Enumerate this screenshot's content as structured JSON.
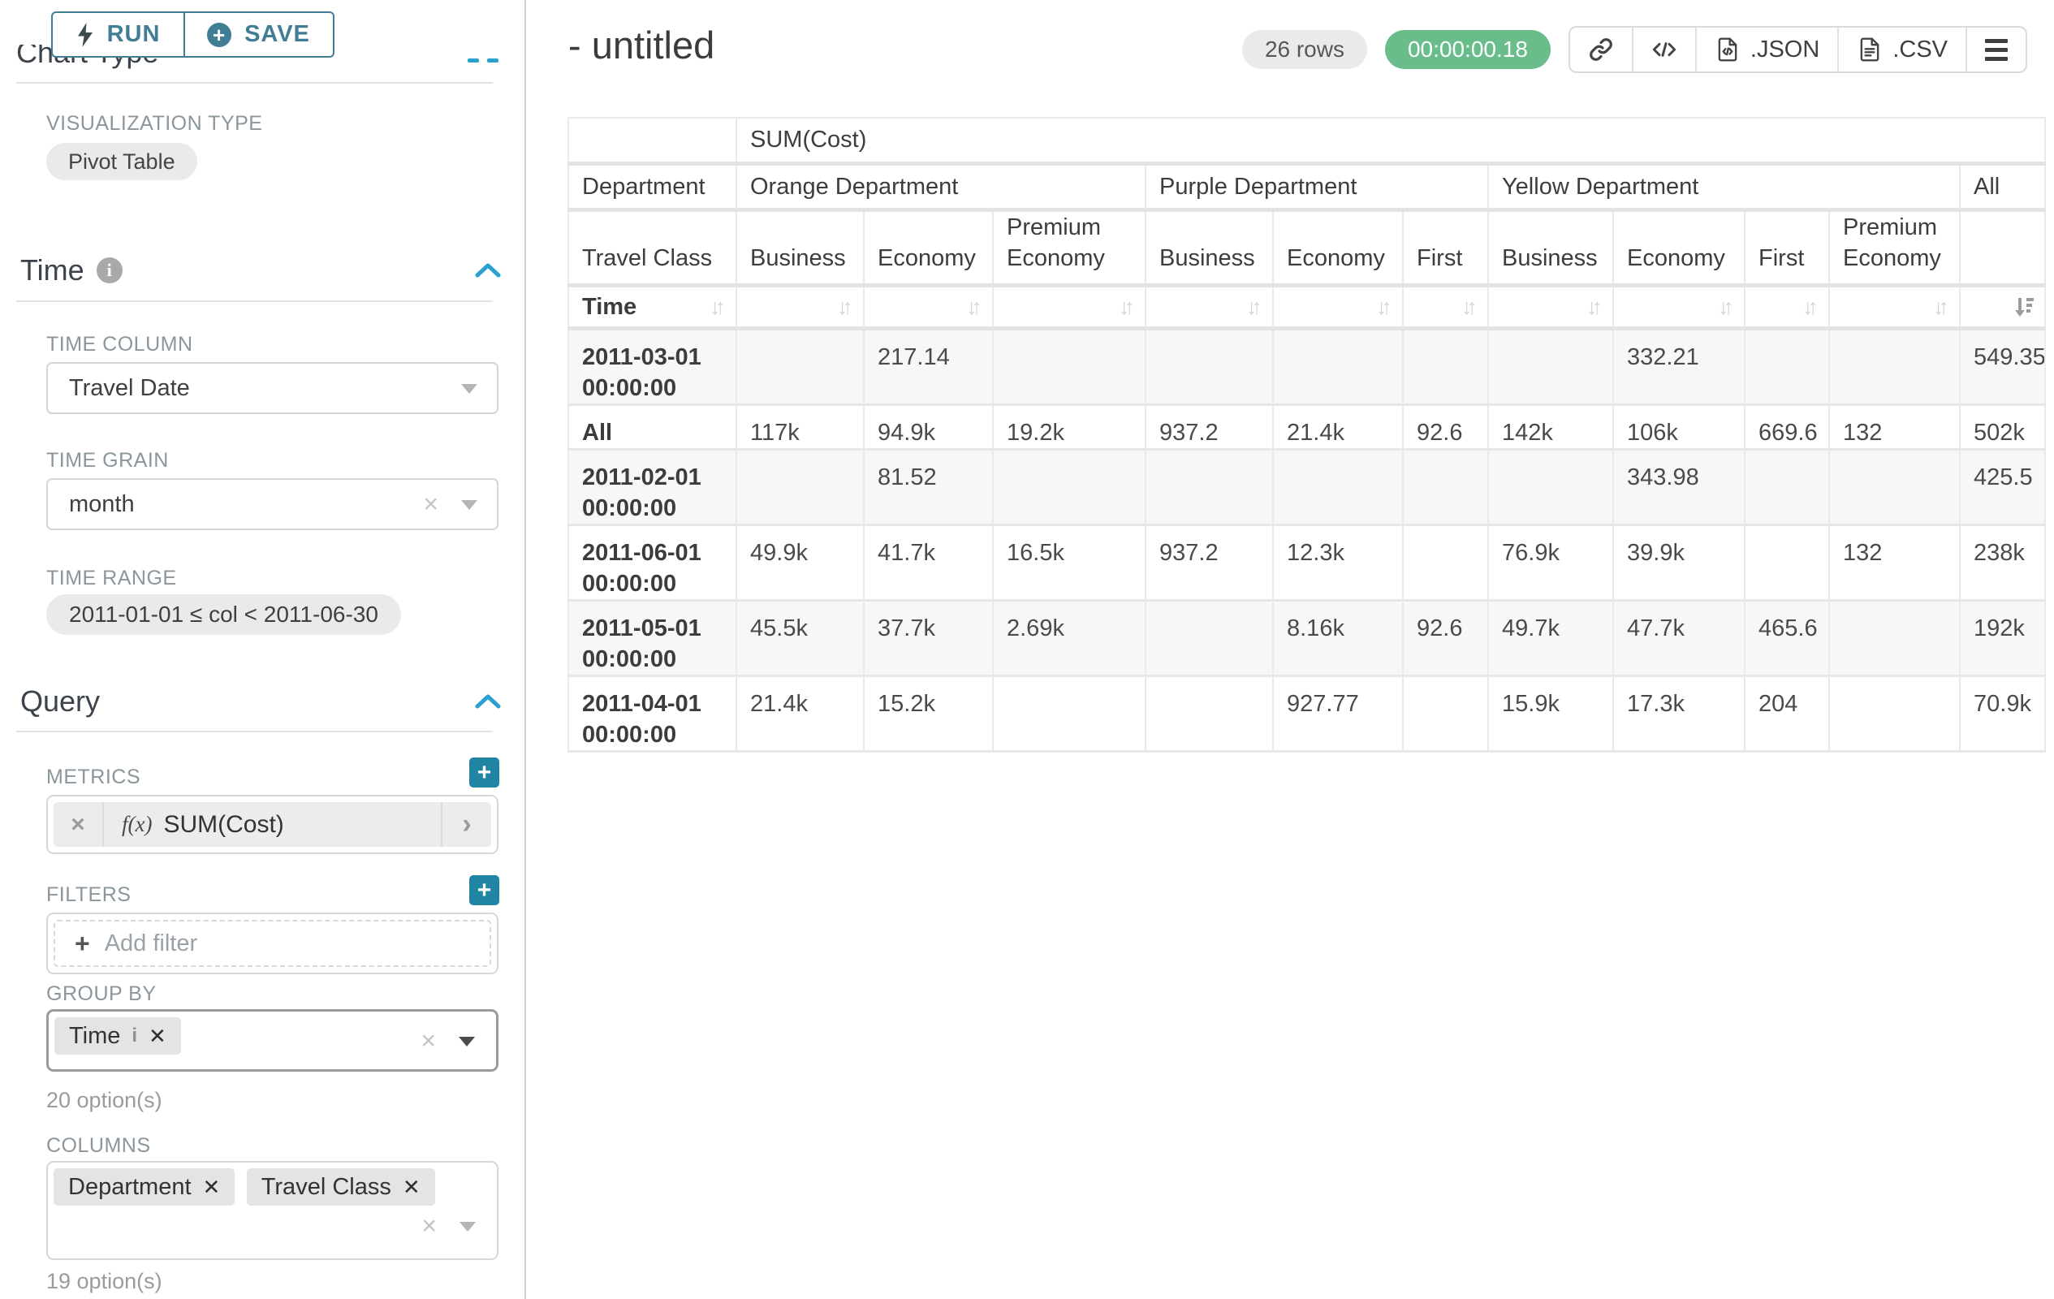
{
  "colors": {
    "button_teal": "#417e96",
    "plus_teal": "#1f85a3",
    "accent_blue": "#2ba1d0",
    "success_green": "#68bd8b"
  },
  "sidebar": {
    "run_label": "RUN",
    "save_label": "SAVE",
    "chart_type": {
      "title": "Chart Type",
      "viz_label": "VISUALIZATION TYPE",
      "viz_value": "Pivot Table"
    },
    "time": {
      "title": "Time",
      "time_column_label": "TIME COLUMN",
      "time_column_value": "Travel Date",
      "time_grain_label": "TIME GRAIN",
      "time_grain_value": "month",
      "time_range_label": "TIME RANGE",
      "time_range_value": "2011-01-01 ≤ col < 2011-06-30"
    },
    "query": {
      "title": "Query",
      "metrics_label": "METRICS",
      "metrics": [
        {
          "prefix": "f(x)",
          "label": "SUM(Cost)"
        }
      ],
      "filters_label": "FILTERS",
      "add_filter_label": "Add filter",
      "group_by_label": "GROUP BY",
      "group_by_chips": [
        "Time"
      ],
      "group_by_hint": "20 option(s)",
      "columns_label": "COLUMNS",
      "columns_chips": [
        "Department",
        "Travel Class"
      ],
      "columns_hint": "19 option(s)"
    }
  },
  "header": {
    "title": "- untitled",
    "row_count_badge": "26 rows",
    "timer_badge": "00:00:00.18",
    "export_json_label": ".JSON",
    "export_csv_label": ".CSV"
  },
  "pivot": {
    "metric_header": "SUM(Cost)",
    "corner_department": "Department",
    "corner_travel_class": "Travel Class",
    "corner_time": "Time",
    "column_groups": [
      {
        "label": "Orange Department",
        "columns": [
          "Business",
          "Economy",
          "Premium Economy"
        ]
      },
      {
        "label": "Purple Department",
        "columns": [
          "Business",
          "Economy",
          "First"
        ]
      },
      {
        "label": "Yellow Department",
        "columns": [
          "Business",
          "Economy",
          "First",
          "Premium Economy"
        ]
      },
      {
        "label": "All",
        "columns": [
          ""
        ]
      }
    ],
    "rows": [
      {
        "label": "2011-03-01 00:00:00",
        "values": [
          "",
          "217.14",
          "",
          "",
          "",
          "",
          "",
          "332.21",
          "",
          "",
          "549.35"
        ]
      },
      {
        "label": "All",
        "values": [
          "117k",
          "94.9k",
          "19.2k",
          "937.2",
          "21.4k",
          "92.6",
          "142k",
          "106k",
          "669.6",
          "132",
          "502k"
        ]
      },
      {
        "label": "2011-02-01 00:00:00",
        "values": [
          "",
          "81.52",
          "",
          "",
          "",
          "",
          "",
          "343.98",
          "",
          "",
          "425.5"
        ]
      },
      {
        "label": "2011-06-01 00:00:00",
        "values": [
          "49.9k",
          "41.7k",
          "16.5k",
          "937.2",
          "12.3k",
          "",
          "76.9k",
          "39.9k",
          "",
          "132",
          "238k"
        ]
      },
      {
        "label": "2011-05-01 00:00:00",
        "values": [
          "45.5k",
          "37.7k",
          "2.69k",
          "",
          "8.16k",
          "92.6",
          "49.7k",
          "47.7k",
          "465.6",
          "",
          "192k"
        ]
      },
      {
        "label": "2011-04-01 00:00:00",
        "values": [
          "21.4k",
          "15.2k",
          "",
          "",
          "927.77",
          "",
          "15.9k",
          "17.3k",
          "204",
          "",
          "70.9k"
        ]
      }
    ]
  }
}
